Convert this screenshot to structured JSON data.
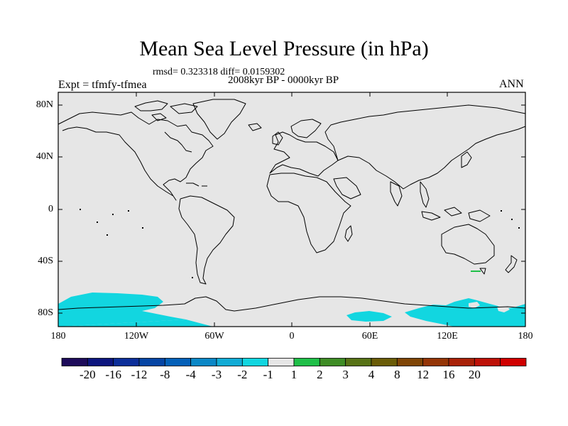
{
  "title": "Mean Sea Level Pressure (in hPa)",
  "stats": "rmsd= 0.323318 diff= 0.0159302",
  "period": "2008kyr BP - 0000kyr BP",
  "experiment": "Expt = tfmfy-tfmea",
  "season": "ANN",
  "lat_labels": [
    "80N",
    "40N",
    "0",
    "40S",
    "80S"
  ],
  "lon_labels": [
    "180",
    "120W",
    "60W",
    "0",
    "60E",
    "120E",
    "180"
  ],
  "colorbar": {
    "colors": [
      "#1d0b5a",
      "#0d167e",
      "#0c2e99",
      "#0645a4",
      "#0460b8",
      "#0b87c6",
      "#12abd5",
      "#12d6e0",
      "#e6e6e6",
      "#1fbf48",
      "#3e8c25",
      "#577216",
      "#6a5c08",
      "#7f4506",
      "#943507",
      "#a82108",
      "#bd1108",
      "#d00000"
    ],
    "labels": [
      "-20",
      "-16",
      "-12",
      "-8",
      "-4",
      "-3",
      "-2",
      "-1",
      "1",
      "2",
      "3",
      "4",
      "8",
      "12",
      "16",
      "20"
    ]
  },
  "colors": {
    "background_field": "#e6e6e6",
    "antarctic_anomaly": "#12d6e0",
    "coastline": "#000000"
  }
}
